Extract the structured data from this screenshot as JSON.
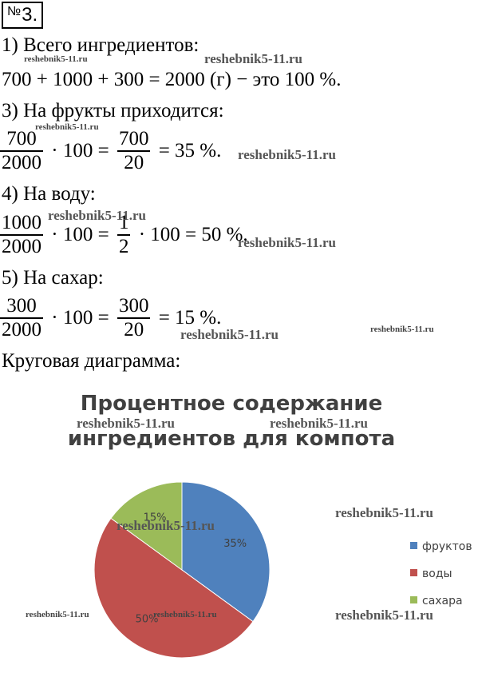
{
  "badge": {
    "symbol": "№",
    "number": "3."
  },
  "steps": {
    "s1_title": "1) Всего ингредиентов:",
    "s1_expr": "700 + 1000 + 300 = 2000 (г) − это 100 %.",
    "s3_title": "3) На фрукты приходится:",
    "s3": {
      "n1": "700",
      "d1": "2000",
      "op1": "· 100 =",
      "n2": "700",
      "d2": "20",
      "res": "= 35 %."
    },
    "s4_title": "4) На воду:",
    "s4": {
      "n1": "1000",
      "d1": "2000",
      "op1": "· 100 =",
      "n2": "1",
      "d2": "2",
      "op2": "· 100 = 50 %."
    },
    "s5_title": "5) На сахар:",
    "s5": {
      "n1": "300",
      "d1": "2000",
      "op1": "· 100 =",
      "n2": "300",
      "d2": "20",
      "res": "= 15 %."
    },
    "chart_caption": "Круговая диаграмма:"
  },
  "watermark": "reshebnik5-11.ru",
  "chart_data": {
    "type": "pie",
    "title_line1": "Процентное содержание",
    "title_line2": "ингредиентов для компота",
    "series": [
      {
        "values": [
          35,
          50,
          15
        ],
        "labels": [
          "35%",
          "50%",
          "15%"
        ]
      }
    ],
    "categories": [
      "фруктов",
      "воды",
      "сахара"
    ],
    "colors": [
      "#4f81bd",
      "#c0504d",
      "#9bbb59"
    ],
    "legend_position": "right"
  }
}
